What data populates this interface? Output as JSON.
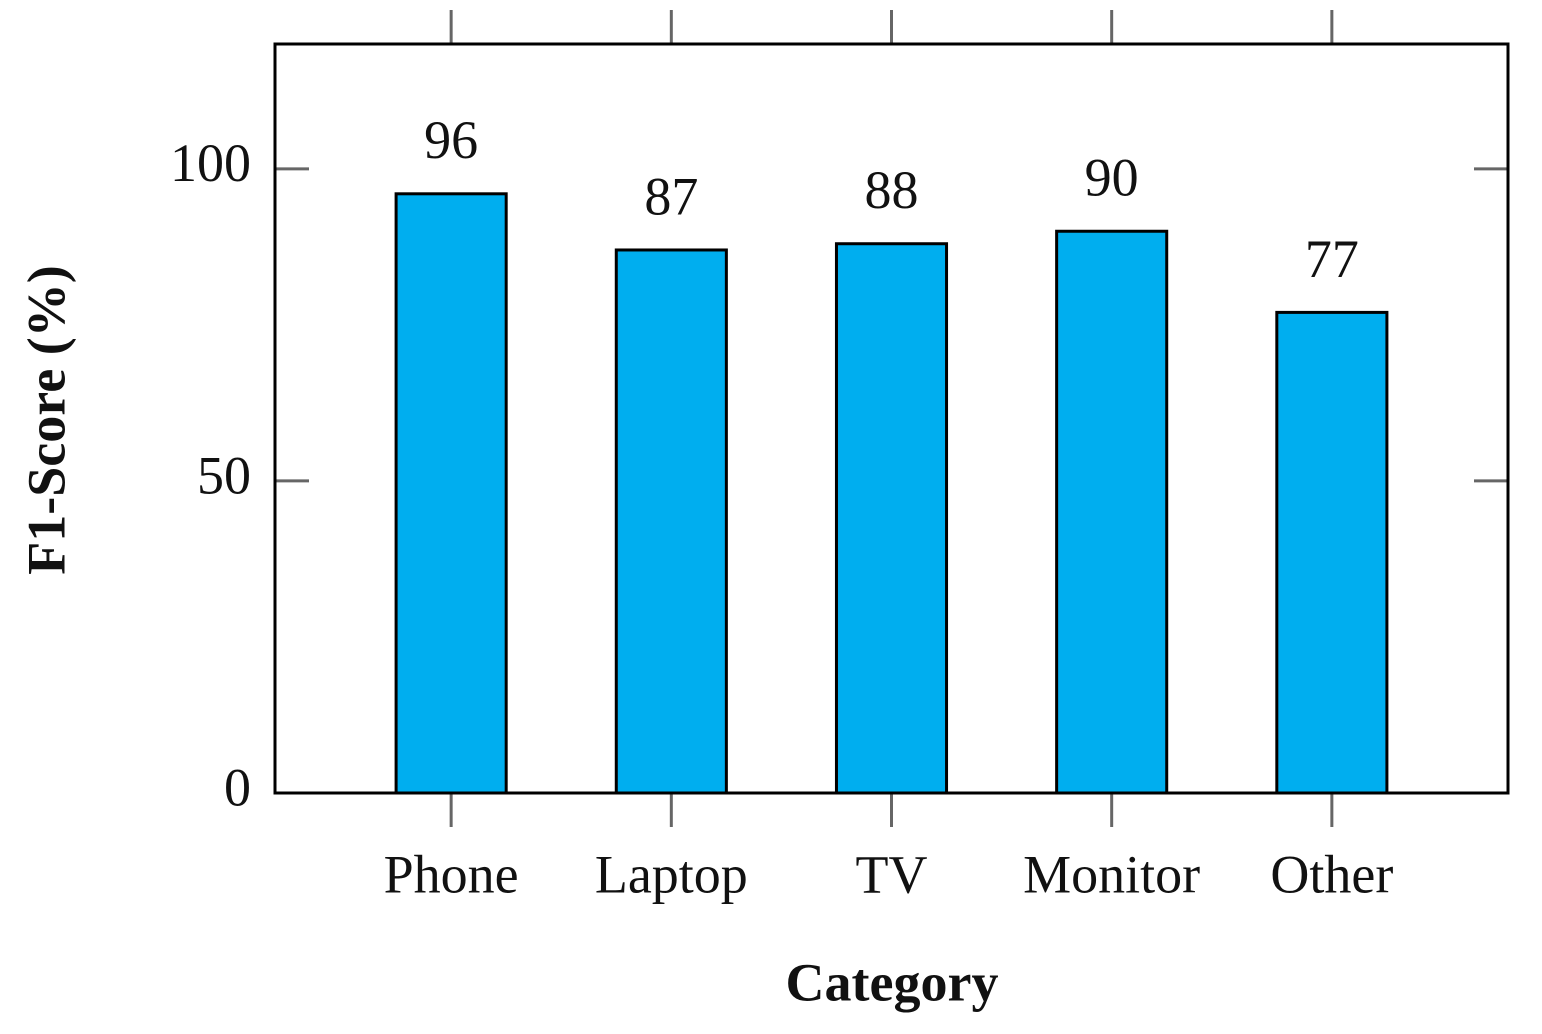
{
  "chart_data": {
    "type": "bar",
    "x_label": "Category",
    "y_label": "F1-Score (%)",
    "categories": [
      "Phone",
      "Laptop",
      "TV",
      "Monitor",
      "Other"
    ],
    "values": [
      96,
      87,
      88,
      90,
      77
    ],
    "color": "#00aeef",
    "ylim": [
      0,
      120
    ],
    "yticks": [
      0,
      50,
      100
    ],
    "grid": false
  }
}
